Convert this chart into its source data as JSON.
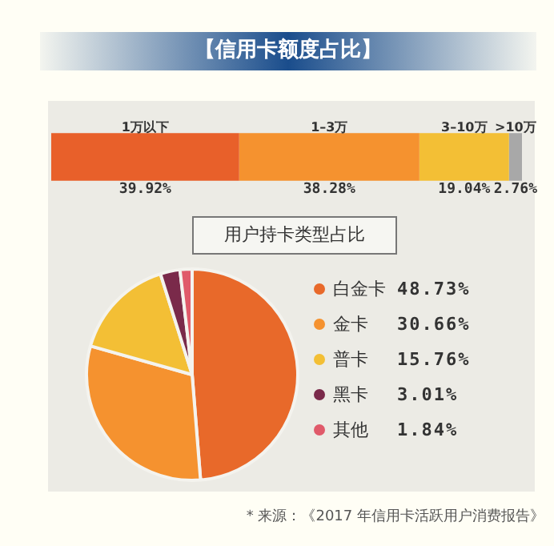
{
  "chart_data": [
    {
      "type": "bar",
      "title": "【信用卡额度占比】",
      "orientation": "horizontal",
      "stacked": true,
      "categories": [
        null
      ],
      "tick_labels": false,
      "series": [
        {
          "name": "1万以下",
          "color": "#e8602a",
          "values": [
            39.92
          ],
          "value_labels": [
            "39.92%"
          ]
        },
        {
          "name": "1–3万",
          "color": "#f5922f",
          "values": [
            38.28
          ],
          "value_labels": [
            "38.28%"
          ]
        },
        {
          "name": "3–10万",
          "color": "#f3bf35",
          "values": [
            19.04
          ],
          "value_labels": [
            "19.04%"
          ]
        },
        {
          "name": ">10万",
          "color": "#a8a8a8",
          "values": [
            2.76
          ],
          "value_labels": [
            "2.76%"
          ]
        }
      ]
    },
    {
      "type": "pie",
      "title": "用户持卡类型占比",
      "legend": "right",
      "categories": [
        "白金卡",
        "金卡",
        "普卡",
        "黑卡",
        "其他"
      ],
      "values": [
        48.73,
        30.66,
        15.76,
        3.01,
        1.84
      ],
      "colors": [
        "#e8692a",
        "#f5922f",
        "#f3bf35",
        "#7a2a4a",
        "#e05a6a"
      ],
      "value_labels": [
        "48.73%",
        "30.66%",
        "15.76%",
        "3.01%",
        "1.84%"
      ],
      "annotations": [
        "* 来源：《2017 年信用卡活跃用户消费报告》"
      ]
    }
  ]
}
